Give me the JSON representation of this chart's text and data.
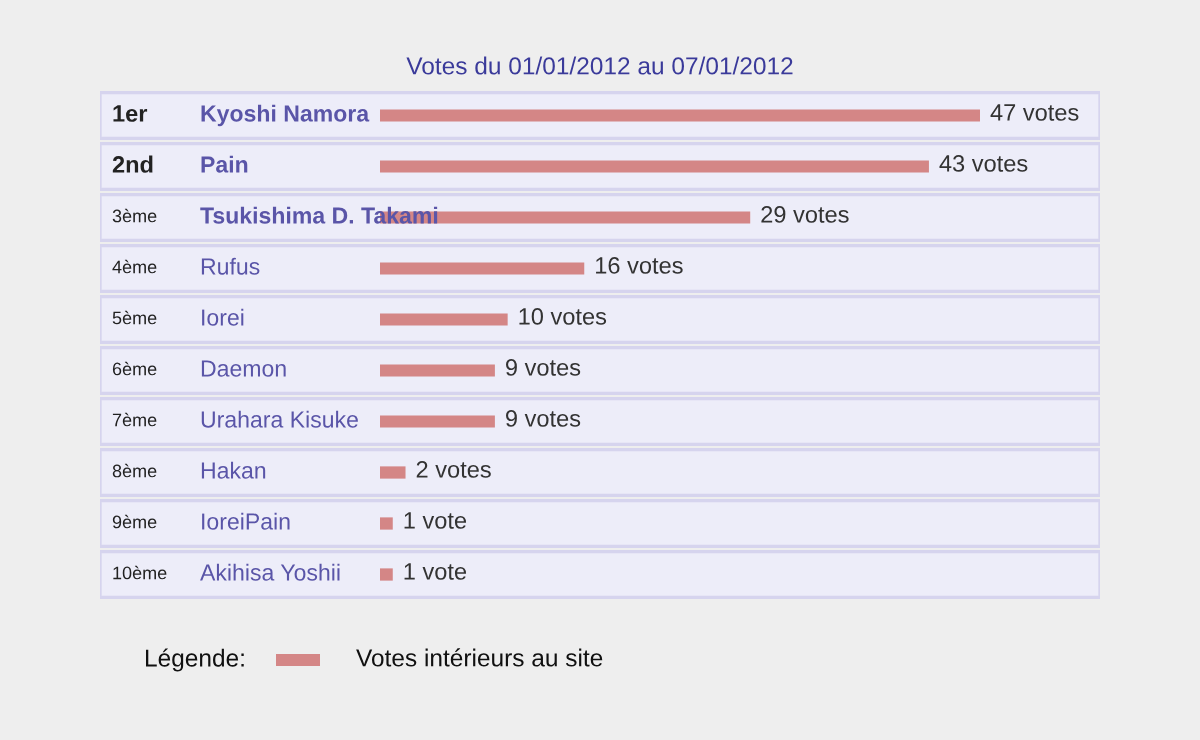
{
  "chart_data": {
    "type": "bar",
    "orientation": "horizontal",
    "title": "Votes du 01/01/2012 au 07/01/2012",
    "categories": [
      "Kyoshi Namora",
      "Pain",
      "Tsukishima D. Takami",
      "Rufus",
      "Iorei",
      "Daemon",
      "Urahara Kisuke",
      "Hakan",
      "IoreiPain",
      "Akihisa Yoshii"
    ],
    "series": [
      {
        "name": "Votes intérieurs au site",
        "color": "#d48686",
        "values": [
          47,
          43,
          29,
          16,
          10,
          9,
          9,
          2,
          1,
          1
        ],
        "value_labels": [
          "47 votes",
          "43 votes",
          "29 votes",
          "16 votes",
          "10 votes",
          "9 votes",
          "9 votes",
          "2 votes",
          "1 vote",
          "1 vote"
        ]
      }
    ],
    "annotations": [
      "1er",
      "2nd",
      "3ème",
      "4ème",
      "5ème",
      "6ème",
      "7ème",
      "8ème",
      "9ème",
      "10ème"
    ],
    "legend_title": "Légende:",
    "legend": "bottom left"
  }
}
